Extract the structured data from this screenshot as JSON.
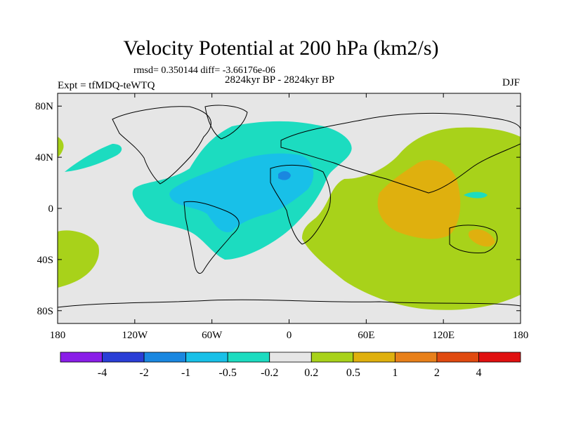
{
  "title": "Velocity Potential at 200 hPa (km2/s)",
  "stats": "rmsd= 0.350144 diff= -3.66176e-06",
  "experiment": "Expt = tfMDQ-teWTQ",
  "period": "2824kyr BP - 2824kyr BP",
  "season": "DJF",
  "chart_data": {
    "type": "heatmap",
    "title": "Velocity Potential at 200 hPa (km2/s)",
    "xlabel": "",
    "ylabel": "",
    "xlim": [
      -180,
      180
    ],
    "ylim": [
      -90,
      90
    ],
    "x_tick_labels": [
      "180",
      "120W",
      "60W",
      "0",
      "60E",
      "120E",
      "180"
    ],
    "x_tick_values": [
      -180,
      -120,
      -60,
      0,
      60,
      120,
      180
    ],
    "y_tick_labels": [
      "80N",
      "40N",
      "0",
      "40S",
      "80S"
    ],
    "y_tick_values": [
      80,
      40,
      0,
      -40,
      -80
    ],
    "colorbar": {
      "levels": [
        "-4",
        "-2",
        "-1",
        "-0.5",
        "-0.2",
        "0.2",
        "0.5",
        "1",
        "2",
        "4"
      ],
      "colors": [
        "#8a1ee8",
        "#2a3ed6",
        "#1a87e0",
        "#18c0e8",
        "#1cdcc0",
        "#e6e6e6",
        "#a8d21a",
        "#dfb00e",
        "#e8801a",
        "#e04a10",
        "#e01010"
      ]
    },
    "regions": [
      {
        "name": "Atlantic / Americas negative center",
        "value_range": "-1 to -0.5",
        "center": [
          -20,
          25
        ]
      },
      {
        "name": "Eastern Hemisphere positive center",
        "value_range": "0.5 to 1",
        "center": [
          100,
          10
        ]
      }
    ]
  }
}
